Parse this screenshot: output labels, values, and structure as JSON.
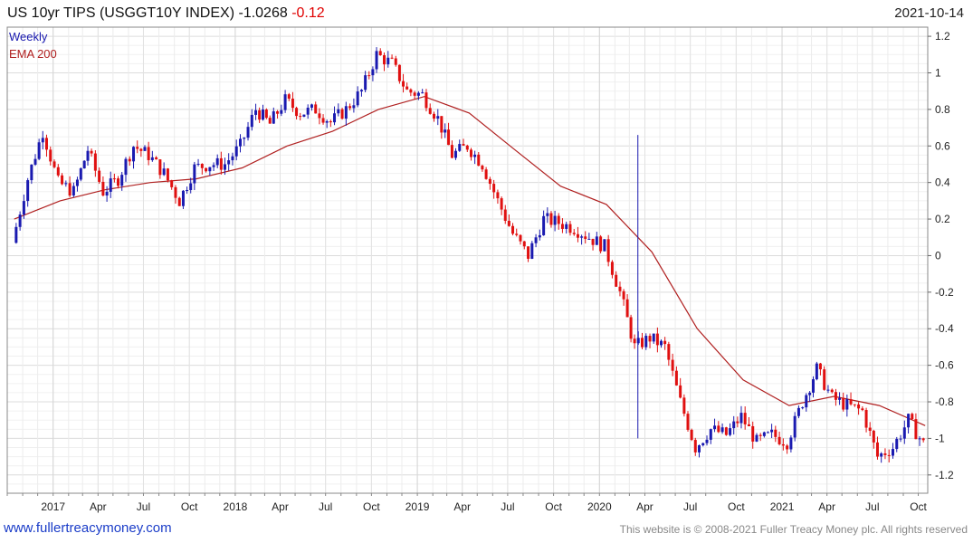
{
  "header": {
    "title": "US 10yr TIPS (USGGT10Y INDEX)",
    "last_value": "-1.0268",
    "change": "-0.12",
    "date": "2021-10-14"
  },
  "footer": {
    "site_link": "www.fullertreacymoney.com",
    "copyright": "This website is © 2008-2021 Fuller Treacy Money plc. All rights reserved"
  },
  "colors": {
    "up_candle": "#1a1ab0",
    "down_candle": "#e01010",
    "ema_line": "#b02020",
    "grid": "#e6e6e6",
    "frame": "#888888"
  },
  "chart_data": {
    "type": "line",
    "title": "US 10yr TIPS (USGGT10Y INDEX)",
    "xlabel": "",
    "ylabel": "",
    "ylim": [
      -1.3,
      1.25
    ],
    "y_ticks": [
      "1.2",
      "1",
      "0.8",
      "0.6",
      "0.4",
      "0.2",
      "0",
      "-0.2",
      "-0.4",
      "-0.6",
      "-0.8",
      "-1",
      "-1.2"
    ],
    "x_ticks": [
      "2017",
      "Apr",
      "Jul",
      "Oct",
      "2018",
      "Apr",
      "Jul",
      "Oct",
      "2019",
      "Apr",
      "Jul",
      "Oct",
      "2020",
      "Apr",
      "Jul",
      "Oct",
      "2021",
      "Apr",
      "Jul",
      "Oct"
    ],
    "grid": true,
    "legend_placement": "top-left",
    "series": [
      {
        "name": "Weekly",
        "style": "candlestick",
        "dates": [
          "2016-10",
          "2016-11",
          "2016-12",
          "2017-01",
          "2017-02",
          "2017-03",
          "2017-04",
          "2017-05",
          "2017-06",
          "2017-07",
          "2017-08",
          "2017-09",
          "2017-10",
          "2017-11",
          "2017-12",
          "2018-01",
          "2018-02",
          "2018-03",
          "2018-04",
          "2018-05",
          "2018-06",
          "2018-07",
          "2018-08",
          "2018-09",
          "2018-10",
          "2018-11",
          "2018-12",
          "2019-01",
          "2019-02",
          "2019-03",
          "2019-04",
          "2019-05",
          "2019-06",
          "2019-07",
          "2019-08",
          "2019-09",
          "2019-10",
          "2019-11",
          "2019-12",
          "2020-01",
          "2020-02",
          "2020-03",
          "2020-04",
          "2020-05",
          "2020-06",
          "2020-07",
          "2020-08",
          "2020-09",
          "2020-10",
          "2020-11",
          "2020-12",
          "2021-01",
          "2021-02",
          "2021-03",
          "2021-04",
          "2021-05",
          "2021-06",
          "2021-07",
          "2021-08",
          "2021-09",
          "2021-10"
        ],
        "values": [
          0.07,
          0.42,
          0.68,
          0.4,
          0.35,
          0.58,
          0.35,
          0.42,
          0.6,
          0.55,
          0.45,
          0.3,
          0.48,
          0.5,
          0.5,
          0.6,
          0.8,
          0.72,
          0.85,
          0.78,
          0.8,
          0.73,
          0.8,
          0.9,
          1.1,
          1.05,
          0.9,
          0.88,
          0.75,
          0.55,
          0.6,
          0.5,
          0.3,
          0.12,
          0.0,
          0.2,
          0.18,
          0.15,
          0.1,
          0.05,
          -0.2,
          -0.5,
          -0.45,
          -0.5,
          -0.8,
          -1.05,
          -0.95,
          -0.98,
          -0.88,
          -1.02,
          -0.98,
          -1.02,
          -0.8,
          -0.62,
          -0.78,
          -0.82,
          -0.85,
          -1.1,
          -1.05,
          -0.9,
          -1.03
        ]
      },
      {
        "name": "EMA 200",
        "style": "line",
        "dates": [
          "2016-10",
          "2017-01",
          "2017-04",
          "2017-07",
          "2017-10",
          "2018-01",
          "2018-04",
          "2018-07",
          "2018-10",
          "2019-01",
          "2019-04",
          "2019-07",
          "2019-10",
          "2020-01",
          "2020-04",
          "2020-07",
          "2020-10",
          "2021-01",
          "2021-04",
          "2021-07",
          "2021-10"
        ],
        "values": [
          0.2,
          0.3,
          0.36,
          0.4,
          0.42,
          0.48,
          0.6,
          0.68,
          0.8,
          0.87,
          0.78,
          0.58,
          0.38,
          0.28,
          0.02,
          -0.4,
          -0.68,
          -0.82,
          -0.77,
          -0.82,
          -0.93
        ]
      }
    ]
  }
}
